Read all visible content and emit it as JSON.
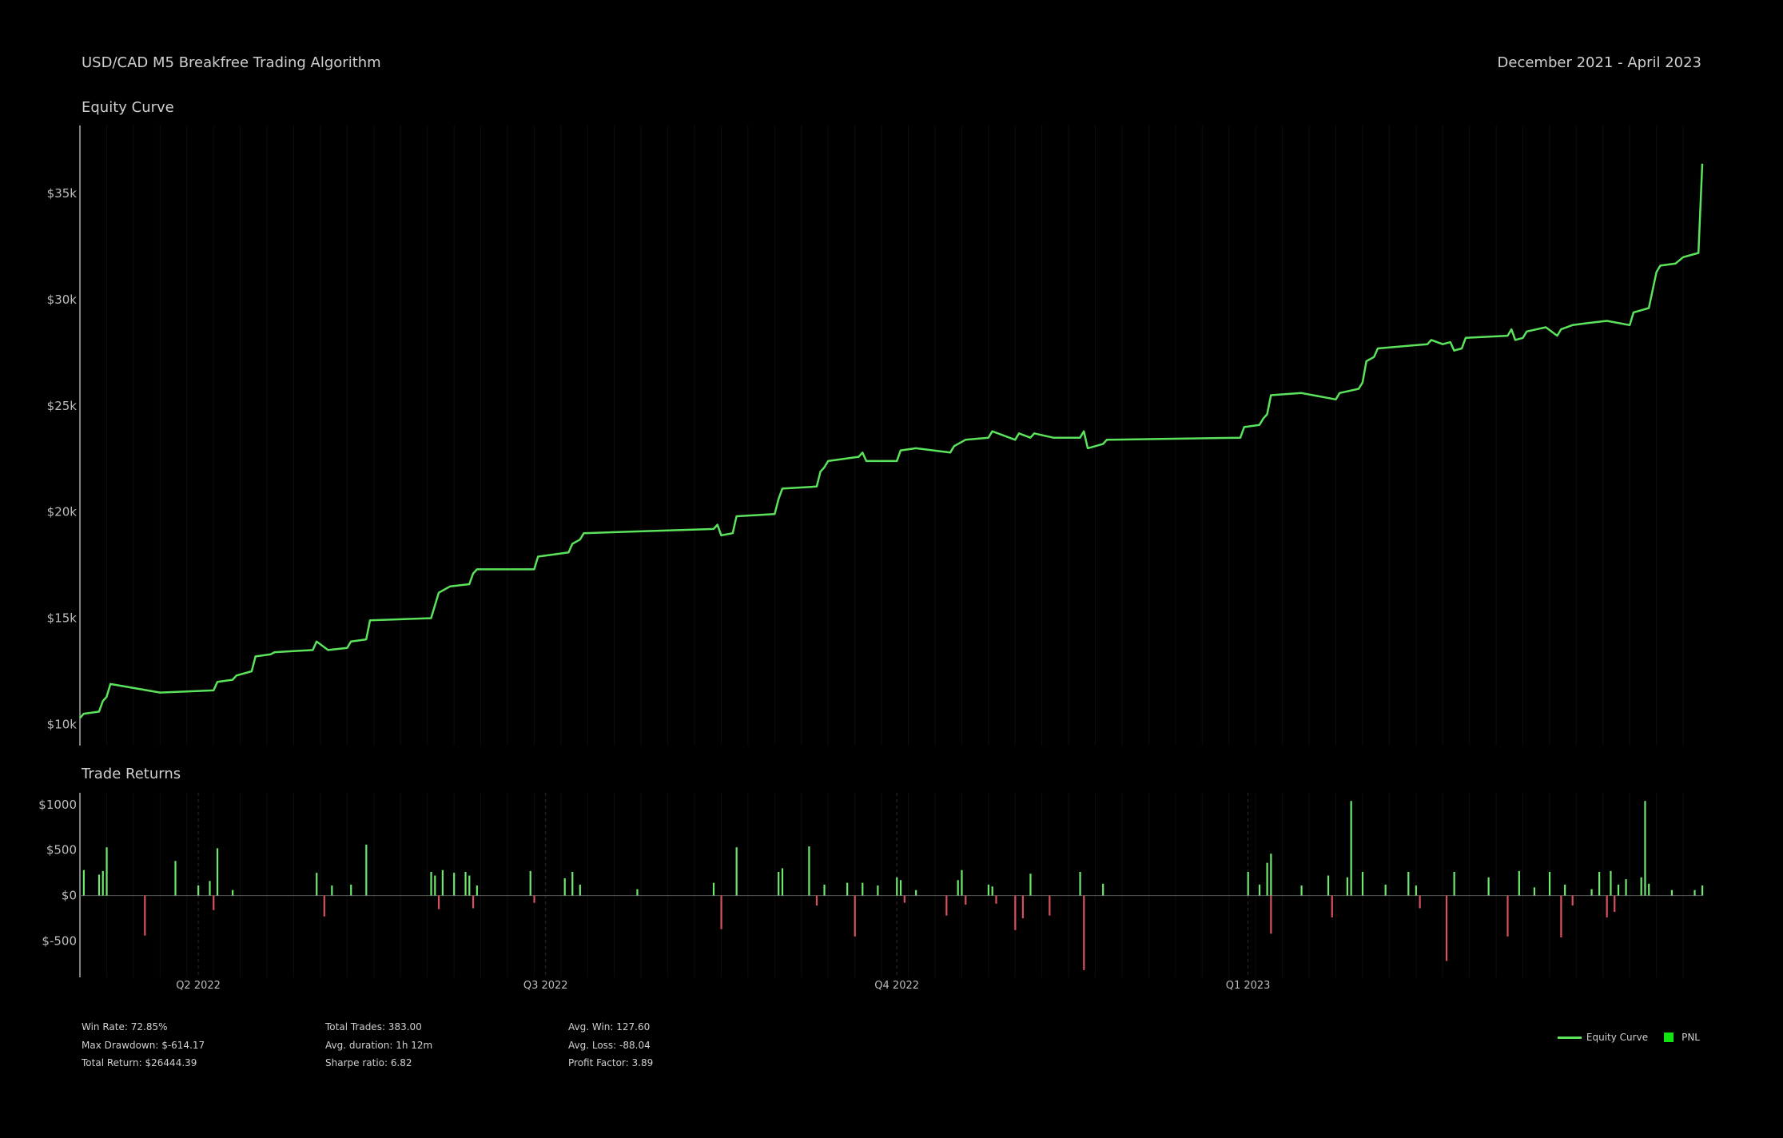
{
  "header": {
    "title": "USD/CAD M5 Breakfree Trading Algorithm",
    "date_range": "December 2021 - April 2023"
  },
  "stats": {
    "col1": [
      "Win Rate: 72.85%",
      "Max Drawdown: $-614.17",
      "Total Return: $26444.39"
    ],
    "col2": [
      "Total Trades: 383.00",
      "Avg. duration: 1h 12m",
      "Sharpe ratio: 6.82"
    ],
    "col3": [
      "Avg. Win: 127.60",
      "Avg. Loss: -88.04",
      "Profit Factor: 3.89"
    ]
  },
  "legend": {
    "equity_label": "Equity Curve",
    "pnl_label": "PNL"
  },
  "colors": {
    "equity": "#5be35b",
    "win": "#6ee86e",
    "loss": "#d9505e",
    "background": "#000000"
  },
  "chart_data": [
    {
      "type": "line",
      "title": "Equity Curve",
      "x_start": "2022-03-01",
      "x_end": "2023-04-30",
      "ylim": [
        9000,
        38200
      ],
      "y_ticks": [
        10000,
        15000,
        20000,
        25000,
        30000,
        35000
      ],
      "y_tick_labels": [
        "$10k",
        "$15k",
        "$20k",
        "$25k",
        "$30k",
        "$35k"
      ],
      "grid": true,
      "series": [
        {
          "name": "Equity Curve",
          "points": [
            [
              "2022-03-01",
              10300
            ],
            [
              "2022-03-02",
              10500
            ],
            [
              "2022-03-06",
              10600
            ],
            [
              "2022-03-07",
              11100
            ],
            [
              "2022-03-08",
              11300
            ],
            [
              "2022-03-09",
              11900
            ],
            [
              "2022-03-22",
              11500
            ],
            [
              "2022-04-05",
              11600
            ],
            [
              "2022-04-06",
              12000
            ],
            [
              "2022-04-10",
              12100
            ],
            [
              "2022-04-11",
              12300
            ],
            [
              "2022-04-15",
              12500
            ],
            [
              "2022-04-16",
              13200
            ],
            [
              "2022-04-20",
              13300
            ],
            [
              "2022-04-21",
              13400
            ],
            [
              "2022-05-01",
              13500
            ],
            [
              "2022-05-02",
              13900
            ],
            [
              "2022-05-05",
              13500
            ],
            [
              "2022-05-10",
              13600
            ],
            [
              "2022-05-11",
              13900
            ],
            [
              "2022-05-15",
              14000
            ],
            [
              "2022-05-16",
              14900
            ],
            [
              "2022-06-01",
              15000
            ],
            [
              "2022-06-02",
              15600
            ],
            [
              "2022-06-03",
              16200
            ],
            [
              "2022-06-06",
              16500
            ],
            [
              "2022-06-11",
              16600
            ],
            [
              "2022-06-12",
              17100
            ],
            [
              "2022-06-13",
              17300
            ],
            [
              "2022-06-28",
              17300
            ],
            [
              "2022-06-29",
              17900
            ],
            [
              "2022-07-07",
              18100
            ],
            [
              "2022-07-08",
              18500
            ],
            [
              "2022-07-10",
              18700
            ],
            [
              "2022-07-11",
              19000
            ],
            [
              "2022-08-14",
              19200
            ],
            [
              "2022-08-15",
              19400
            ],
            [
              "2022-08-16",
              18900
            ],
            [
              "2022-08-19",
              19000
            ],
            [
              "2022-08-20",
              19800
            ],
            [
              "2022-08-30",
              19900
            ],
            [
              "2022-08-31",
              20600
            ],
            [
              "2022-09-01",
              21100
            ],
            [
              "2022-09-10",
              21200
            ],
            [
              "2022-09-11",
              21900
            ],
            [
              "2022-09-12",
              22100
            ],
            [
              "2022-09-13",
              22400
            ],
            [
              "2022-09-21",
              22600
            ],
            [
              "2022-09-22",
              22800
            ],
            [
              "2022-09-23",
              22400
            ],
            [
              "2022-10-01",
              22400
            ],
            [
              "2022-10-02",
              22900
            ],
            [
              "2022-10-06",
              23000
            ],
            [
              "2022-10-15",
              22800
            ],
            [
              "2022-10-16",
              23100
            ],
            [
              "2022-10-19",
              23400
            ],
            [
              "2022-10-25",
              23500
            ],
            [
              "2022-10-26",
              23800
            ],
            [
              "2022-11-01",
              23400
            ],
            [
              "2022-11-02",
              23700
            ],
            [
              "2022-11-05",
              23500
            ],
            [
              "2022-11-06",
              23700
            ],
            [
              "2022-11-11",
              23500
            ],
            [
              "2022-11-18",
              23500
            ],
            [
              "2022-11-19",
              23800
            ],
            [
              "2022-11-20",
              23000
            ],
            [
              "2022-11-24",
              23200
            ],
            [
              "2022-11-25",
              23400
            ],
            [
              "2022-12-30",
              23500
            ],
            [
              "2022-12-31",
              24000
            ],
            [
              "2023-01-04",
              24100
            ],
            [
              "2023-01-05",
              24400
            ],
            [
              "2023-01-06",
              24600
            ],
            [
              "2023-01-07",
              25500
            ],
            [
              "2023-01-15",
              25600
            ],
            [
              "2023-01-24",
              25300
            ],
            [
              "2023-01-25",
              25600
            ],
            [
              "2023-01-30",
              25800
            ],
            [
              "2023-01-31",
              26100
            ],
            [
              "2023-02-01",
              27100
            ],
            [
              "2023-02-03",
              27300
            ],
            [
              "2023-02-04",
              27700
            ],
            [
              "2023-02-17",
              27900
            ],
            [
              "2023-02-18",
              28100
            ],
            [
              "2023-02-21",
              27900
            ],
            [
              "2023-02-23",
              28000
            ],
            [
              "2023-02-24",
              27600
            ],
            [
              "2023-02-26",
              27700
            ],
            [
              "2023-02-27",
              28200
            ],
            [
              "2023-03-10",
              28300
            ],
            [
              "2023-03-11",
              28600
            ],
            [
              "2023-03-12",
              28100
            ],
            [
              "2023-03-14",
              28200
            ],
            [
              "2023-03-15",
              28500
            ],
            [
              "2023-03-20",
              28700
            ],
            [
              "2023-03-23",
              28300
            ],
            [
              "2023-03-24",
              28600
            ],
            [
              "2023-03-27",
              28800
            ],
            [
              "2023-03-31",
              28900
            ],
            [
              "2023-04-05",
              29000
            ],
            [
              "2023-04-11",
              28800
            ],
            [
              "2023-04-12",
              29400
            ],
            [
              "2023-04-16",
              29600
            ],
            [
              "2023-04-18",
              31300
            ],
            [
              "2023-04-19",
              31600
            ],
            [
              "2023-04-23",
              31700
            ],
            [
              "2023-04-25",
              32000
            ],
            [
              "2023-04-29",
              32200
            ],
            [
              "2023-04-30",
              36400
            ]
          ]
        }
      ]
    },
    {
      "type": "bar",
      "title": "Trade Returns",
      "x_ticks": [
        "2022-04-01",
        "2022-07-01",
        "2022-10-01",
        "2023-01-01"
      ],
      "x_tick_labels": [
        "Q2 2022",
        "Q3 2022",
        "Q4 2022",
        "Q1 2023"
      ],
      "ylim": [
        -900,
        1130
      ],
      "y_ticks": [
        -500,
        0,
        500,
        1000
      ],
      "y_tick_labels": [
        "$-500",
        "$0",
        "$500",
        "$1000"
      ],
      "series": [
        {
          "name": "PNL",
          "points": [
            [
              "2022-03-02",
              280
            ],
            [
              "2022-03-06",
              230
            ],
            [
              "2022-03-07",
              270
            ],
            [
              "2022-03-08",
              530
            ],
            [
              "2022-03-18",
              -440
            ],
            [
              "2022-03-26",
              380
            ],
            [
              "2022-04-01",
              110
            ],
            [
              "2022-04-04",
              160
            ],
            [
              "2022-04-05",
              -160
            ],
            [
              "2022-04-06",
              520
            ],
            [
              "2022-04-10",
              60
            ],
            [
              "2022-05-02",
              250
            ],
            [
              "2022-05-04",
              -230
            ],
            [
              "2022-05-06",
              110
            ],
            [
              "2022-05-11",
              120
            ],
            [
              "2022-05-15",
              560
            ],
            [
              "2022-06-01",
              260
            ],
            [
              "2022-06-02",
              220
            ],
            [
              "2022-06-03",
              -150
            ],
            [
              "2022-06-04",
              280
            ],
            [
              "2022-06-07",
              250
            ],
            [
              "2022-06-10",
              260
            ],
            [
              "2022-06-11",
              220
            ],
            [
              "2022-06-12",
              -140
            ],
            [
              "2022-06-13",
              110
            ],
            [
              "2022-06-27",
              270
            ],
            [
              "2022-06-28",
              -80
            ],
            [
              "2022-07-06",
              190
            ],
            [
              "2022-07-08",
              260
            ],
            [
              "2022-07-10",
              120
            ],
            [
              "2022-07-25",
              70
            ],
            [
              "2022-08-14",
              140
            ],
            [
              "2022-08-16",
              -370
            ],
            [
              "2022-08-20",
              530
            ],
            [
              "2022-08-31",
              260
            ],
            [
              "2022-09-01",
              300
            ],
            [
              "2022-09-08",
              540
            ],
            [
              "2022-09-10",
              -110
            ],
            [
              "2022-09-12",
              120
            ],
            [
              "2022-09-18",
              140
            ],
            [
              "2022-09-20",
              -450
            ],
            [
              "2022-09-22",
              140
            ],
            [
              "2022-09-26",
              110
            ],
            [
              "2022-10-01",
              200
            ],
            [
              "2022-10-02",
              170
            ],
            [
              "2022-10-03",
              -80
            ],
            [
              "2022-10-06",
              60
            ],
            [
              "2022-10-14",
              -220
            ],
            [
              "2022-10-17",
              170
            ],
            [
              "2022-10-18",
              280
            ],
            [
              "2022-10-19",
              -100
            ],
            [
              "2022-10-25",
              120
            ],
            [
              "2022-10-26",
              100
            ],
            [
              "2022-10-27",
              -90
            ],
            [
              "2022-11-01",
              -380
            ],
            [
              "2022-11-03",
              -250
            ],
            [
              "2022-11-05",
              240
            ],
            [
              "2022-11-10",
              -220
            ],
            [
              "2022-11-18",
              260
            ],
            [
              "2022-11-19",
              -820
            ],
            [
              "2022-11-24",
              130
            ],
            [
              "2023-01-01",
              260
            ],
            [
              "2023-01-04",
              120
            ],
            [
              "2023-01-06",
              360
            ],
            [
              "2023-01-07",
              460
            ],
            [
              "2023-01-07",
              -420
            ],
            [
              "2023-01-15",
              110
            ],
            [
              "2023-01-22",
              220
            ],
            [
              "2023-01-23",
              -240
            ],
            [
              "2023-01-27",
              200
            ],
            [
              "2023-01-28",
              1040
            ],
            [
              "2023-01-31",
              260
            ],
            [
              "2023-02-06",
              120
            ],
            [
              "2023-02-12",
              260
            ],
            [
              "2023-02-14",
              110
            ],
            [
              "2023-02-15",
              -140
            ],
            [
              "2023-02-22",
              -720
            ],
            [
              "2023-02-24",
              260
            ],
            [
              "2023-03-05",
              200
            ],
            [
              "2023-03-10",
              -450
            ],
            [
              "2023-03-13",
              270
            ],
            [
              "2023-03-17",
              90
            ],
            [
              "2023-03-21",
              260
            ],
            [
              "2023-03-24",
              -460
            ],
            [
              "2023-03-25",
              120
            ],
            [
              "2023-03-27",
              -110
            ],
            [
              "2023-04-01",
              70
            ],
            [
              "2023-04-03",
              260
            ],
            [
              "2023-04-05",
              -240
            ],
            [
              "2023-04-06",
              270
            ],
            [
              "2023-04-07",
              -180
            ],
            [
              "2023-04-08",
              120
            ],
            [
              "2023-04-10",
              180
            ],
            [
              "2023-04-14",
              200
            ],
            [
              "2023-04-15",
              1040
            ],
            [
              "2023-04-16",
              130
            ],
            [
              "2023-04-22",
              60
            ],
            [
              "2023-04-28",
              60
            ],
            [
              "2023-04-30",
              110
            ]
          ]
        }
      ]
    }
  ]
}
